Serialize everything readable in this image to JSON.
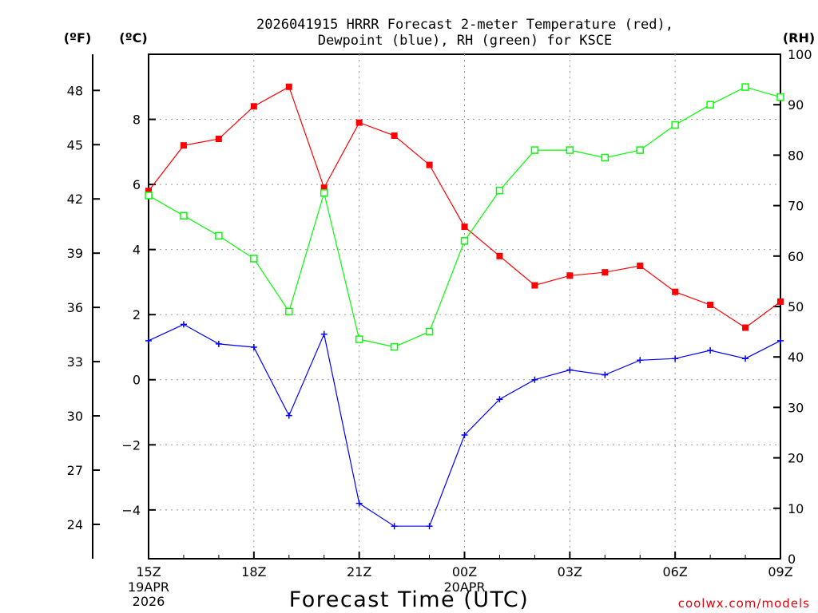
{
  "chart_data": {
    "type": "line",
    "title_line1": "2026041915 HRRR Forecast 2-meter Temperature (red),",
    "title_line2": "Dewpoint (blue), RH (green) for KSCE",
    "xlabel": "Forecast Time (UTC)",
    "unit_f": "(ºF)",
    "unit_c": "(ºC)",
    "unit_rh": "(RH)",
    "credit": "coolwx.com/models",
    "hours": [
      0,
      1,
      2,
      3,
      4,
      5,
      6,
      7,
      8,
      9,
      10,
      11,
      12,
      13,
      14,
      15,
      16,
      17,
      18
    ],
    "x_ticks": [
      {
        "hour": 0,
        "label": "15Z",
        "sub1": "19APR",
        "sub2": "2026"
      },
      {
        "hour": 3,
        "label": "18Z",
        "sub1": "",
        "sub2": ""
      },
      {
        "hour": 6,
        "label": "21Z",
        "sub1": "",
        "sub2": ""
      },
      {
        "hour": 9,
        "label": "00Z",
        "sub1": "20APR",
        "sub2": ""
      },
      {
        "hour": 12,
        "label": "03Z",
        "sub1": "",
        "sub2": ""
      },
      {
        "hour": 15,
        "label": "06Z",
        "sub1": "",
        "sub2": ""
      },
      {
        "hour": 18,
        "label": "09Z",
        "sub1": "",
        "sub2": ""
      }
    ],
    "c_range": [
      -5.5,
      10
    ],
    "c_ticks": [
      {
        "v": 8,
        "label": "8"
      },
      {
        "v": 6,
        "label": "6"
      },
      {
        "v": 4,
        "label": "4"
      },
      {
        "v": 2,
        "label": "2"
      },
      {
        "v": 0,
        "label": "0"
      },
      {
        "v": -2,
        "label": "−2"
      },
      {
        "v": -4,
        "label": "−4"
      }
    ],
    "f_ticks": [
      {
        "v": 48,
        "label": "48"
      },
      {
        "v": 45,
        "label": "45"
      },
      {
        "v": 42,
        "label": "42"
      },
      {
        "v": 39,
        "label": "39"
      },
      {
        "v": 36,
        "label": "36"
      },
      {
        "v": 33,
        "label": "33"
      },
      {
        "v": 30,
        "label": "30"
      },
      {
        "v": 27,
        "label": "27"
      },
      {
        "v": 24,
        "label": "24"
      }
    ],
    "rh_range": [
      0,
      100
    ],
    "rh_ticks": [
      {
        "v": 100,
        "label": "100"
      },
      {
        "v": 90,
        "label": "90"
      },
      {
        "v": 80,
        "label": "80"
      },
      {
        "v": 70,
        "label": "70"
      },
      {
        "v": 60,
        "label": "60"
      },
      {
        "v": 50,
        "label": "50"
      },
      {
        "v": 40,
        "label": "40"
      },
      {
        "v": 30,
        "label": "30"
      },
      {
        "v": 20,
        "label": "20"
      },
      {
        "v": 10,
        "label": "10"
      },
      {
        "v": 0,
        "label": "0"
      }
    ],
    "series": [
      {
        "name": "Temperature",
        "axis": "c",
        "color": "#ff0000",
        "marker": "filled-square",
        "values": [
          5.8,
          7.2,
          7.4,
          8.4,
          9.0,
          5.9,
          7.9,
          7.5,
          6.6,
          4.7,
          3.8,
          2.9,
          3.2,
          3.3,
          3.5,
          2.7,
          2.3,
          1.6,
          2.4
        ]
      },
      {
        "name": "Dewpoint",
        "axis": "c",
        "color": "#0000ff",
        "marker": "plus",
        "values": [
          1.2,
          1.7,
          1.1,
          1.0,
          -1.1,
          1.4,
          -3.8,
          -4.5,
          -4.5,
          -1.7,
          -0.6,
          0.0,
          0.3,
          0.15,
          0.6,
          0.65,
          0.9,
          0.65,
          1.2
        ]
      },
      {
        "name": "RH",
        "axis": "rh",
        "color": "#00ff00",
        "marker": "open-square",
        "values": [
          72,
          68,
          64,
          59.5,
          49,
          72.5,
          43.5,
          42,
          45,
          63,
          73,
          81,
          81,
          79.5,
          81,
          86,
          90,
          93.5,
          91.5
        ]
      }
    ]
  }
}
